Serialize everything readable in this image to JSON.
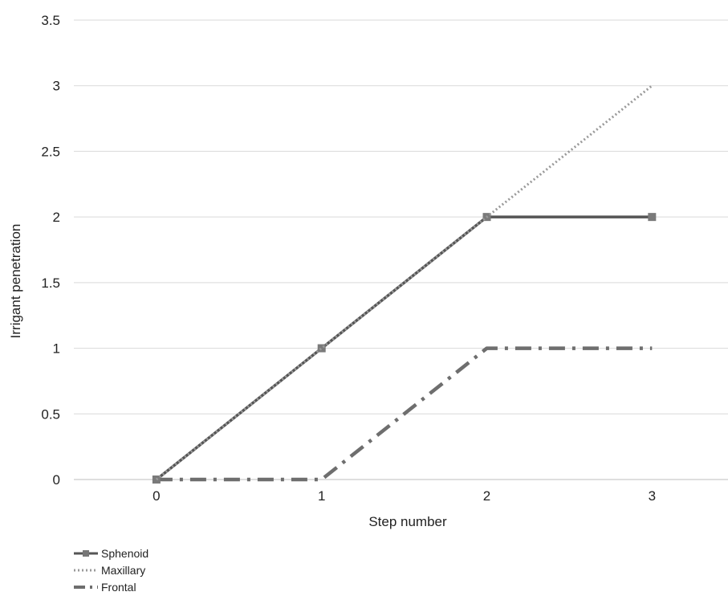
{
  "chart_data": {
    "type": "line",
    "x": [
      0,
      1,
      2,
      3
    ],
    "xlabel": "Step number",
    "ylabel": "Irrigant penetration",
    "ylim": [
      0,
      3.5
    ],
    "yticks": [
      "0",
      "0.5",
      "1",
      "1.5",
      "2",
      "2.5",
      "3",
      "3.5"
    ],
    "xticks": [
      "0",
      "1",
      "2",
      "3"
    ],
    "grid": "horizontal",
    "legend_position": "bottom-left",
    "series": [
      {
        "name": "Sphenoid",
        "values": [
          0,
          1,
          2,
          2
        ],
        "style": "solid",
        "color": "#555555",
        "marker": "square"
      },
      {
        "name": "Maxillary",
        "values": [
          0,
          1,
          2,
          3
        ],
        "style": "dotted",
        "color": "#9a9a9a"
      },
      {
        "name": "Frontal",
        "values": [
          0,
          0,
          1,
          1
        ],
        "style": "dashdot",
        "color": "#6e6e6e"
      }
    ]
  }
}
